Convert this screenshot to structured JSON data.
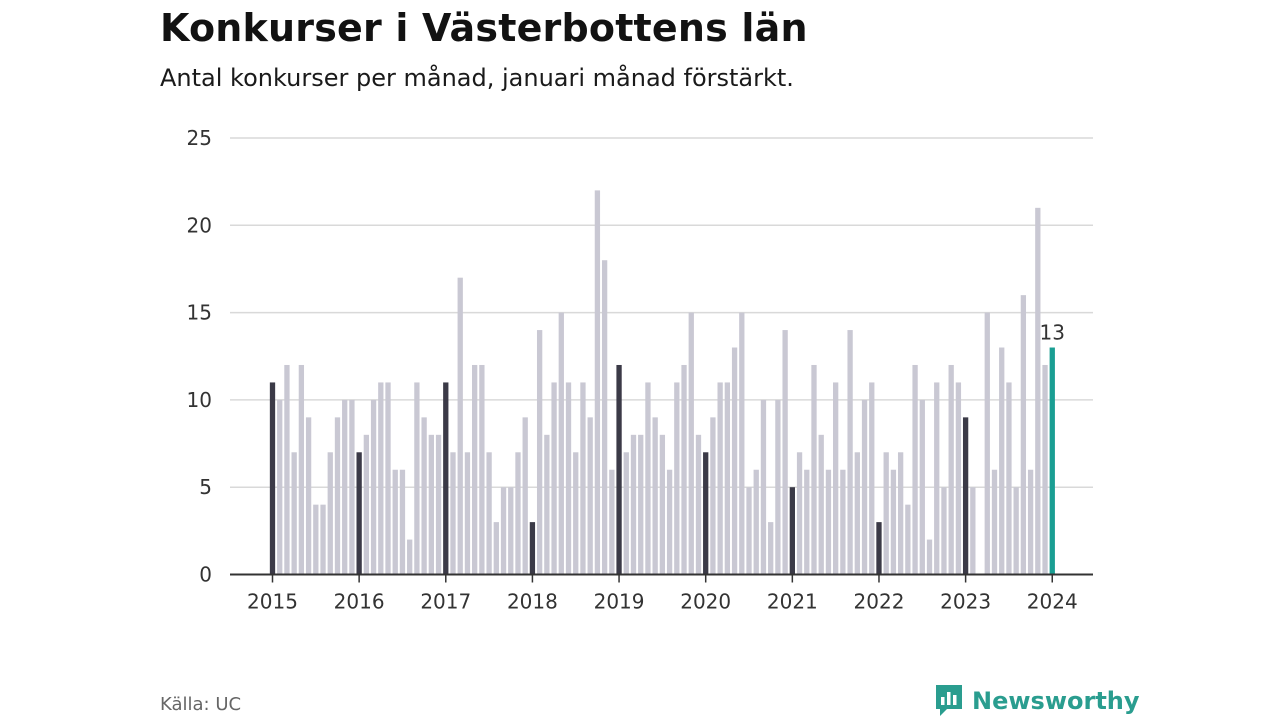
{
  "header": {
    "title": "Konkurser i Västerbottens län",
    "subtitle": "Antal konkurser per månad, januari månad förstärkt."
  },
  "footer": {
    "source": "Källa: UC",
    "brand": "Newsworthy"
  },
  "colors": {
    "january": "#3b3a47",
    "other": "#c9c8d3",
    "latest": "#1a9e93",
    "grid": "#d9d9d9",
    "axis": "#333333",
    "brand": "#2a9d8f"
  },
  "chart_data": {
    "type": "bar",
    "ylim": [
      0,
      25
    ],
    "yticks": [
      "0",
      "5",
      "10",
      "15",
      "20",
      "25"
    ],
    "xticks": [
      "2015",
      "2016",
      "2017",
      "2018",
      "2019",
      "2020",
      "2021",
      "2022",
      "2023",
      "2024"
    ],
    "grid": true,
    "highlight": "January bars darker; latest month highlighted and labelled",
    "latest_label": "13",
    "series": [
      {
        "values": [
          11,
          10,
          12,
          7,
          12,
          9,
          4,
          4,
          7,
          9,
          10,
          10,
          7,
          8,
          10,
          11,
          11,
          6,
          6,
          2,
          11,
          9,
          8,
          8,
          11,
          7,
          17,
          7,
          12,
          12,
          7,
          3,
          5,
          5,
          7,
          9,
          3,
          14,
          8,
          11,
          15,
          11,
          7,
          11,
          9,
          22,
          18,
          6,
          12,
          7,
          8,
          8,
          11,
          9,
          8,
          6,
          11,
          12,
          15,
          8,
          7,
          9,
          11,
          11,
          13,
          15,
          5,
          6,
          10,
          3,
          10,
          14,
          5,
          7,
          6,
          12,
          8,
          6,
          11,
          6,
          14,
          7,
          10,
          11,
          3,
          7,
          6,
          7,
          4,
          12,
          10,
          2,
          11,
          5,
          12,
          11,
          9,
          5,
          0,
          15,
          6,
          13,
          11,
          5,
          16,
          6,
          21,
          12,
          13
        ]
      }
    ]
  }
}
